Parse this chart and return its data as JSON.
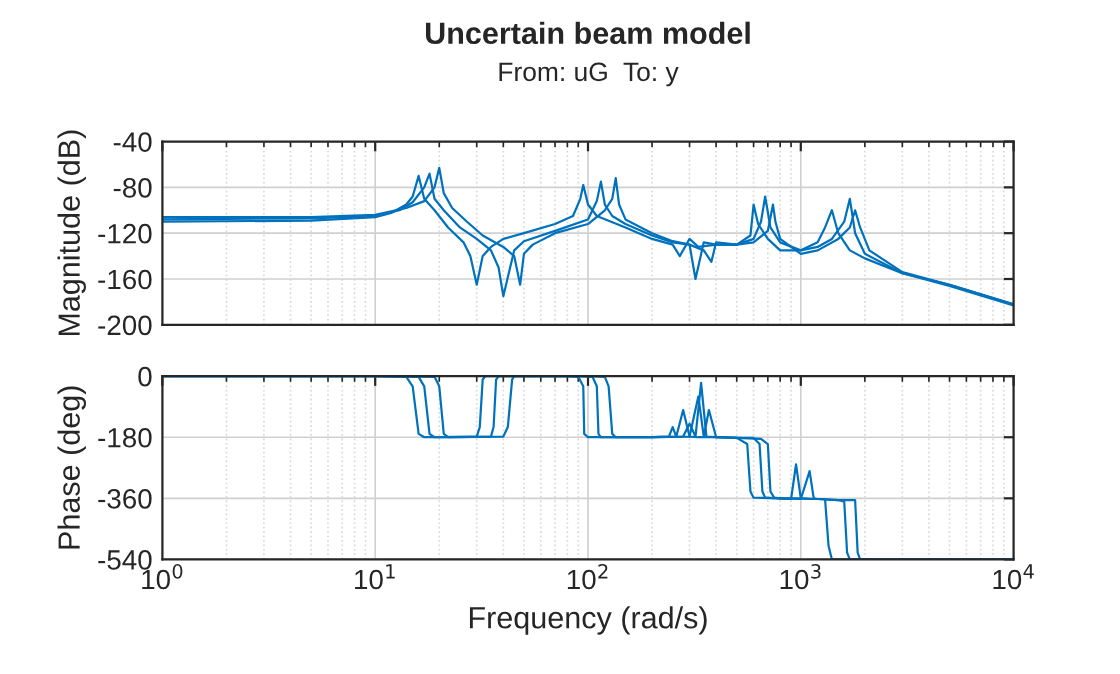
{
  "chart_data": [
    {
      "type": "line",
      "title": "Uncertain beam model",
      "subtitle": "From: uG  To: y",
      "ylabel": "Magnitude (dB)",
      "log": "x",
      "xlim": [
        1,
        10000
      ],
      "xticks": [
        {
          "value": 1,
          "label": null
        },
        {
          "value": 10,
          "label": null
        },
        {
          "value": 100,
          "label": null
        },
        {
          "value": 1000,
          "label": null
        },
        {
          "value": 10000,
          "label": null
        }
      ],
      "ylim": [
        -200,
        -40
      ],
      "yticks": [
        -200,
        -160,
        -120,
        -80,
        -40
      ],
      "tick_labels": "y",
      "grid": true,
      "series": [
        {
          "color": "#0072bd",
          "x": [
            1,
            5,
            10,
            12,
            14,
            15,
            16,
            17,
            19,
            22,
            26,
            28,
            30,
            32,
            35,
            40,
            50,
            70,
            85,
            92,
            95,
            100,
            110,
            150,
            200,
            250,
            270,
            300,
            330,
            400,
            500,
            580,
            600,
            630,
            700,
            800,
            1000,
            1200,
            1300,
            1400,
            1500,
            1700,
            2000,
            3000,
            5000,
            10000
          ],
          "values": [
            -110,
            -109,
            -106,
            -102,
            -95,
            -88,
            -70,
            -90,
            -100,
            -115,
            -128,
            -140,
            -165,
            -140,
            -132,
            -125,
            -120,
            -112,
            -105,
            -90,
            -78,
            -95,
            -105,
            -115,
            -125,
            -130,
            -140,
            -125,
            -132,
            -130,
            -130,
            -122,
            -95,
            -112,
            -125,
            -135,
            -135,
            -128,
            -115,
            -100,
            -120,
            -135,
            -142,
            -155,
            -165,
            -182
          ]
        },
        {
          "color": "#0072bd",
          "x": [
            1,
            5,
            10,
            13,
            15,
            17,
            18,
            19,
            21,
            25,
            30,
            35,
            38,
            40,
            45,
            50,
            70,
            100,
            110,
            115,
            120,
            130,
            150,
            200,
            250,
            300,
            320,
            350,
            400,
            500,
            600,
            650,
            680,
            720,
            800,
            1000,
            1200,
            1400,
            1600,
            1700,
            1800,
            2000,
            3000,
            5000,
            10000
          ],
          "values": [
            -108,
            -107,
            -105,
            -100,
            -93,
            -80,
            -68,
            -90,
            -100,
            -115,
            -125,
            -135,
            -150,
            -175,
            -135,
            -127,
            -118,
            -108,
            -92,
            -75,
            -95,
            -105,
            -112,
            -122,
            -128,
            -130,
            -160,
            -128,
            -130,
            -130,
            -125,
            -110,
            -88,
            -115,
            -128,
            -135,
            -132,
            -125,
            -110,
            -90,
            -120,
            -138,
            -155,
            -166,
            -183
          ]
        },
        {
          "color": "#0072bd",
          "x": [
            1,
            5,
            10,
            14,
            17,
            19,
            20,
            21,
            23,
            27,
            32,
            40,
            45,
            48,
            50,
            55,
            70,
            100,
            120,
            130,
            135,
            140,
            150,
            200,
            250,
            300,
            350,
            380,
            400,
            500,
            600,
            700,
            740,
            760,
            800,
            1000,
            1200,
            1500,
            1700,
            1800,
            1900,
            2100,
            3000,
            5000,
            10000
          ],
          "values": [
            -106,
            -106,
            -104,
            -98,
            -92,
            -80,
            -63,
            -85,
            -98,
            -110,
            -122,
            -132,
            -140,
            -165,
            -138,
            -130,
            -120,
            -112,
            -100,
            -90,
            -72,
            -95,
            -108,
            -120,
            -127,
            -130,
            -135,
            -145,
            -128,
            -130,
            -128,
            -118,
            -95,
            -110,
            -125,
            -138,
            -135,
            -125,
            -115,
            -100,
            -115,
            -135,
            -154,
            -165,
            -182
          ]
        }
      ]
    },
    {
      "type": "line",
      "xlabel": "Frequency (rad/s)",
      "ylabel": "Phase (deg)",
      "log": "x",
      "xlim": [
        1,
        10000
      ],
      "xticks": [
        {
          "value": 1,
          "label": "10$^{0}$"
        },
        {
          "value": 10,
          "label": "10$^{1}$"
        },
        {
          "value": 100,
          "label": "10$^{2}$"
        },
        {
          "value": 1000,
          "label": "10$^{3}$"
        },
        {
          "value": 10000,
          "label": "10$^{4}$"
        }
      ],
      "ylim": [
        -540,
        0
      ],
      "yticks": [
        -540,
        -360,
        -180,
        0
      ],
      "grid": true,
      "series": [
        {
          "color": "#0072bd",
          "x": [
            1,
            10,
            14,
            15,
            16,
            17,
            20,
            30,
            31,
            32,
            33,
            35,
            80,
            90,
            95,
            96,
            100,
            200,
            240,
            250,
            260,
            280,
            300,
            330,
            400,
            500,
            560,
            580,
            600,
            800,
            1000,
            1200,
            1300,
            1350,
            1400,
            2000,
            10000
          ],
          "values": [
            0,
            0,
            -2,
            -30,
            -170,
            -180,
            -180,
            -178,
            -150,
            -10,
            0,
            0,
            0,
            -2,
            -30,
            -170,
            -180,
            -180,
            -178,
            -150,
            -178,
            -100,
            -178,
            -180,
            -180,
            -182,
            -200,
            -340,
            -358,
            -360,
            -360,
            -362,
            -362,
            -500,
            -540,
            -540,
            -540
          ]
        },
        {
          "color": "#0072bd",
          "x": [
            1,
            10,
            16,
            17,
            18,
            19,
            22,
            35,
            36,
            37,
            38,
            40,
            90,
            105,
            110,
            112,
            115,
            200,
            280,
            300,
            320,
            340,
            360,
            400,
            500,
            600,
            640,
            660,
            680,
            800,
            900,
            950,
            1000,
            1100,
            1200,
            1500,
            1600,
            1650,
            1700,
            2000,
            10000
          ],
          "values": [
            0,
            0,
            -2,
            -30,
            -170,
            -180,
            -180,
            -178,
            -150,
            -10,
            0,
            0,
            0,
            -2,
            -30,
            -170,
            -180,
            -180,
            -178,
            -140,
            -178,
            -20,
            -178,
            -180,
            -182,
            -182,
            -200,
            -340,
            -358,
            -360,
            -362,
            -260,
            -360,
            -362,
            -362,
            -365,
            -370,
            -520,
            -540,
            -540,
            -540
          ]
        },
        {
          "color": "#0072bd",
          "x": [
            1,
            10,
            19,
            20,
            21,
            22,
            25,
            40,
            42,
            44,
            45,
            48,
            100,
            120,
            125,
            130,
            135,
            200,
            300,
            330,
            350,
            370,
            400,
            500,
            650,
            700,
            720,
            750,
            800,
            1000,
            1100,
            1150,
            1200,
            1500,
            1800,
            1850,
            1900,
            2500,
            10000
          ],
          "values": [
            0,
            0,
            -2,
            -30,
            -170,
            -180,
            -180,
            -178,
            -150,
            -10,
            0,
            0,
            0,
            -2,
            -30,
            -170,
            -180,
            -180,
            -178,
            -60,
            -178,
            -100,
            -180,
            -182,
            -185,
            -200,
            -340,
            -358,
            -360,
            -362,
            -280,
            -360,
            -362,
            -365,
            -365,
            -520,
            -540,
            -540,
            -540
          ]
        }
      ]
    }
  ]
}
